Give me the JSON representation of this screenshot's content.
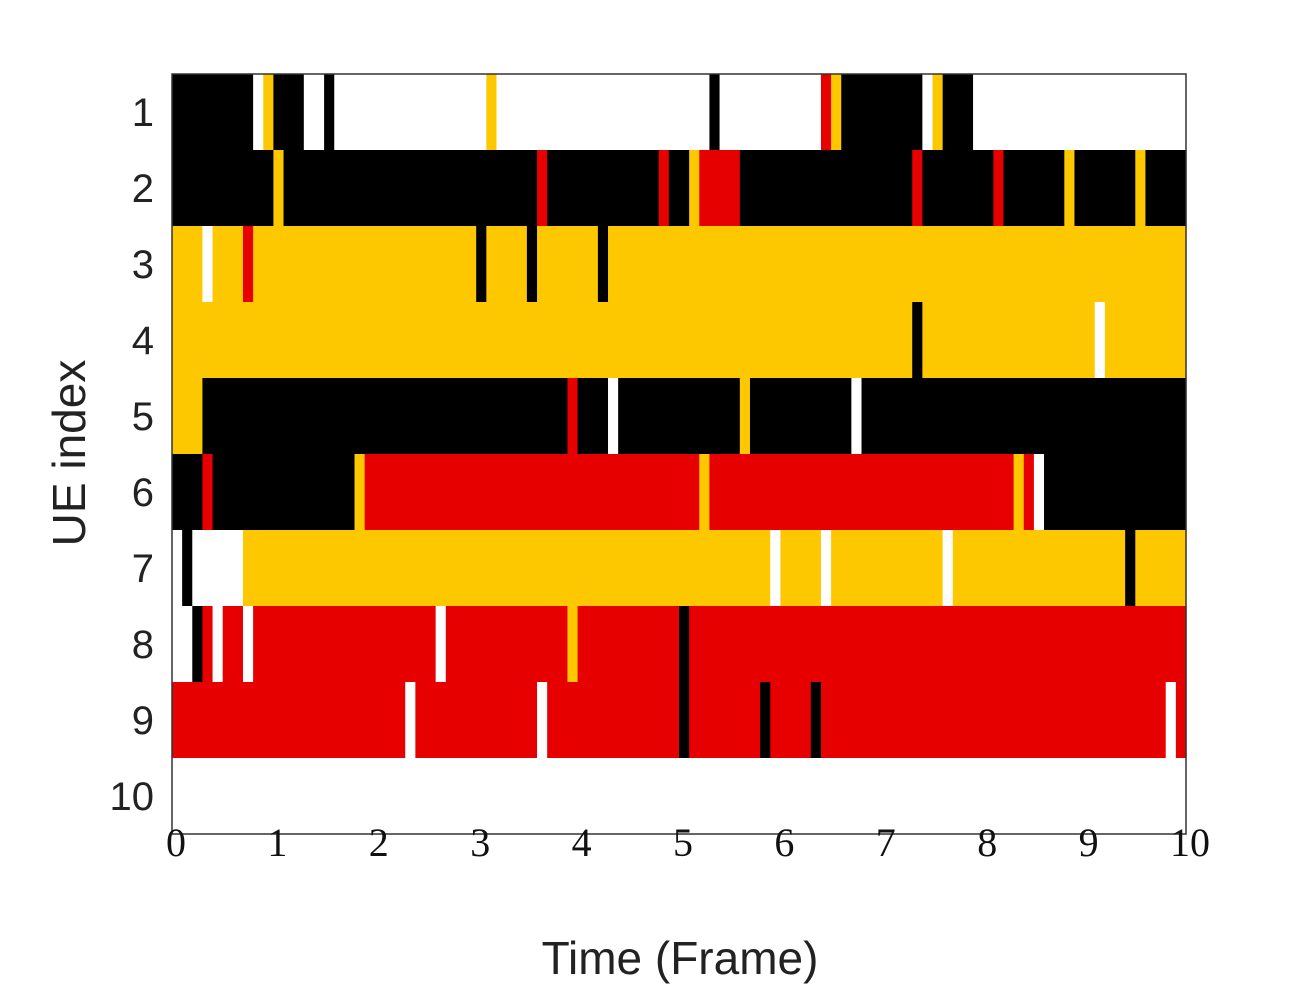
{
  "chart_data": {
    "type": "heatmap",
    "title": "",
    "xlabel": "Time (Frame)",
    "ylabel": "UE index",
    "xlim": [
      0,
      10
    ],
    "ylim": [
      1,
      10
    ],
    "x_ticks": [
      "0",
      "1",
      "2",
      "3",
      "4",
      "5",
      "6",
      "7",
      "8",
      "9",
      "10"
    ],
    "y_ticks": [
      "1",
      "2",
      "3",
      "4",
      "5",
      "6",
      "7",
      "8",
      "9",
      "10"
    ],
    "grid": false,
    "legend": "none",
    "colors": {
      "black": "#000000",
      "white": "#ffffff",
      "yellow": "#fec800",
      "red": "#e60000"
    },
    "rows": [
      {
        "ue": "1",
        "segments": [
          [
            0.0,
            0.8,
            "black"
          ],
          [
            0.8,
            0.9,
            "white"
          ],
          [
            0.9,
            1.0,
            "yellow"
          ],
          [
            1.0,
            1.3,
            "black"
          ],
          [
            1.3,
            1.5,
            "white"
          ],
          [
            1.5,
            1.6,
            "black"
          ],
          [
            1.6,
            3.1,
            "white"
          ],
          [
            3.1,
            3.2,
            "yellow"
          ],
          [
            3.2,
            5.3,
            "white"
          ],
          [
            5.3,
            5.4,
            "black"
          ],
          [
            5.4,
            6.4,
            "white"
          ],
          [
            6.4,
            6.5,
            "red"
          ],
          [
            6.5,
            6.6,
            "yellow"
          ],
          [
            6.6,
            7.4,
            "black"
          ],
          [
            7.4,
            7.5,
            "white"
          ],
          [
            7.5,
            7.6,
            "yellow"
          ],
          [
            7.6,
            7.9,
            "black"
          ],
          [
            7.9,
            10.0,
            "white"
          ]
        ]
      },
      {
        "ue": "2",
        "segments": [
          [
            0.0,
            1.0,
            "black"
          ],
          [
            1.0,
            1.1,
            "yellow"
          ],
          [
            1.1,
            3.6,
            "black"
          ],
          [
            3.6,
            3.7,
            "red"
          ],
          [
            3.7,
            4.8,
            "black"
          ],
          [
            4.8,
            4.9,
            "red"
          ],
          [
            4.9,
            5.1,
            "black"
          ],
          [
            5.1,
            5.2,
            "yellow"
          ],
          [
            5.2,
            5.6,
            "red"
          ],
          [
            5.6,
            7.3,
            "black"
          ],
          [
            7.3,
            7.4,
            "red"
          ],
          [
            7.4,
            8.1,
            "black"
          ],
          [
            8.1,
            8.2,
            "red"
          ],
          [
            8.2,
            8.8,
            "black"
          ],
          [
            8.8,
            8.9,
            "yellow"
          ],
          [
            8.9,
            9.5,
            "black"
          ],
          [
            9.5,
            9.6,
            "yellow"
          ],
          [
            9.6,
            10.0,
            "black"
          ]
        ]
      },
      {
        "ue": "3",
        "segments": [
          [
            0.0,
            0.3,
            "yellow"
          ],
          [
            0.3,
            0.4,
            "white"
          ],
          [
            0.4,
            0.7,
            "yellow"
          ],
          [
            0.7,
            0.8,
            "red"
          ],
          [
            0.8,
            3.0,
            "yellow"
          ],
          [
            3.0,
            3.1,
            "black"
          ],
          [
            3.1,
            3.5,
            "yellow"
          ],
          [
            3.5,
            3.6,
            "black"
          ],
          [
            3.6,
            4.2,
            "yellow"
          ],
          [
            4.2,
            4.3,
            "black"
          ],
          [
            4.3,
            10.0,
            "yellow"
          ]
        ]
      },
      {
        "ue": "4",
        "segments": [
          [
            0.0,
            7.3,
            "yellow"
          ],
          [
            7.3,
            7.4,
            "black"
          ],
          [
            7.4,
            9.1,
            "yellow"
          ],
          [
            9.1,
            9.2,
            "white"
          ],
          [
            9.2,
            10.0,
            "yellow"
          ]
        ]
      },
      {
        "ue": "5",
        "segments": [
          [
            0.0,
            0.3,
            "yellow"
          ],
          [
            0.3,
            3.9,
            "black"
          ],
          [
            3.9,
            4.0,
            "red"
          ],
          [
            4.0,
            4.3,
            "black"
          ],
          [
            4.3,
            4.4,
            "white"
          ],
          [
            4.4,
            5.6,
            "black"
          ],
          [
            5.6,
            5.7,
            "yellow"
          ],
          [
            5.7,
            6.7,
            "black"
          ],
          [
            6.7,
            6.8,
            "white"
          ],
          [
            6.8,
            10.0,
            "black"
          ]
        ]
      },
      {
        "ue": "6",
        "segments": [
          [
            0.0,
            0.3,
            "black"
          ],
          [
            0.3,
            0.4,
            "red"
          ],
          [
            0.4,
            1.8,
            "black"
          ],
          [
            1.8,
            1.9,
            "yellow"
          ],
          [
            1.9,
            5.2,
            "red"
          ],
          [
            5.2,
            5.3,
            "yellow"
          ],
          [
            5.3,
            8.3,
            "red"
          ],
          [
            8.3,
            8.4,
            "yellow"
          ],
          [
            8.4,
            8.5,
            "red"
          ],
          [
            8.5,
            8.6,
            "white"
          ],
          [
            8.6,
            10.0,
            "black"
          ]
        ]
      },
      {
        "ue": "7",
        "segments": [
          [
            0.0,
            0.1,
            "white"
          ],
          [
            0.1,
            0.2,
            "black"
          ],
          [
            0.2,
            0.7,
            "white"
          ],
          [
            0.7,
            5.9,
            "yellow"
          ],
          [
            5.9,
            6.0,
            "white"
          ],
          [
            6.0,
            6.4,
            "yellow"
          ],
          [
            6.4,
            6.5,
            "white"
          ],
          [
            6.5,
            7.6,
            "yellow"
          ],
          [
            7.6,
            7.7,
            "white"
          ],
          [
            7.7,
            9.4,
            "yellow"
          ],
          [
            9.4,
            9.5,
            "black"
          ],
          [
            9.5,
            10.0,
            "yellow"
          ]
        ]
      },
      {
        "ue": "8",
        "segments": [
          [
            0.0,
            0.2,
            "white"
          ],
          [
            0.2,
            0.3,
            "black"
          ],
          [
            0.3,
            0.4,
            "red"
          ],
          [
            0.4,
            0.5,
            "white"
          ],
          [
            0.5,
            0.7,
            "red"
          ],
          [
            0.7,
            0.8,
            "white"
          ],
          [
            0.8,
            2.6,
            "red"
          ],
          [
            2.6,
            2.7,
            "white"
          ],
          [
            2.7,
            3.9,
            "red"
          ],
          [
            3.9,
            4.0,
            "yellow"
          ],
          [
            4.0,
            5.0,
            "red"
          ],
          [
            5.0,
            5.1,
            "black"
          ],
          [
            5.1,
            10.0,
            "red"
          ]
        ]
      },
      {
        "ue": "9",
        "segments": [
          [
            0.0,
            2.3,
            "red"
          ],
          [
            2.3,
            2.4,
            "white"
          ],
          [
            2.4,
            3.6,
            "red"
          ],
          [
            3.6,
            3.7,
            "white"
          ],
          [
            3.7,
            5.0,
            "red"
          ],
          [
            5.0,
            5.1,
            "black"
          ],
          [
            5.1,
            5.8,
            "red"
          ],
          [
            5.8,
            5.9,
            "black"
          ],
          [
            5.9,
            6.3,
            "red"
          ],
          [
            6.3,
            6.4,
            "black"
          ],
          [
            6.4,
            9.8,
            "red"
          ],
          [
            9.8,
            9.9,
            "white"
          ],
          [
            9.9,
            10.0,
            "red"
          ]
        ]
      },
      {
        "ue": "10",
        "segments": [
          [
            0.0,
            10.0,
            "white"
          ]
        ]
      }
    ]
  }
}
